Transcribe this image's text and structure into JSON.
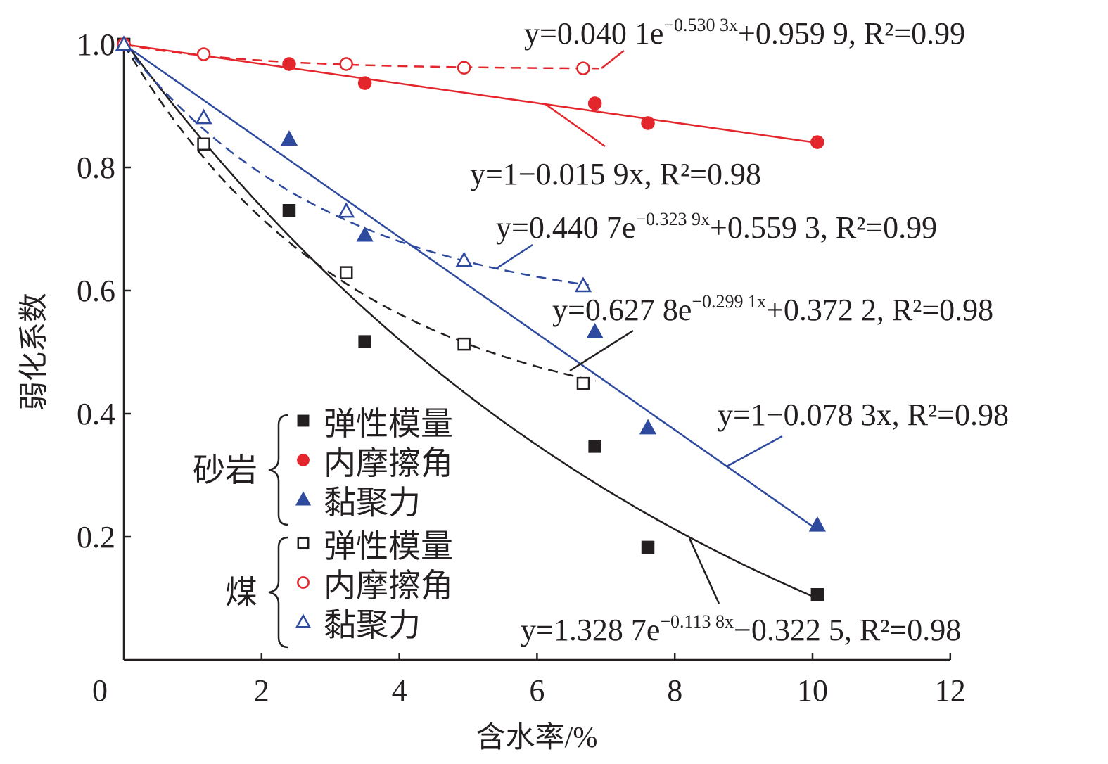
{
  "chart_data": {
    "type": "scatter",
    "title": "",
    "xlabel": "含水率/%",
    "ylabel": "弱化系数",
    "xlim": [
      0,
      12
    ],
    "ylim": [
      0,
      1.0
    ],
    "xticks": [
      "0",
      "2",
      "4",
      "6",
      "8",
      "10",
      "12"
    ],
    "yticks": [
      "0.2",
      "0.4",
      "0.6",
      "0.8",
      "1.0"
    ],
    "grid": false,
    "legend": {
      "placement": "bottom-left",
      "groups": [
        {
          "label": "砂岩",
          "items": [
            "弹性模量",
            "内摩擦角",
            "黏聚力"
          ]
        },
        {
          "label": "煤",
          "items": [
            "弹性模量",
            "内摩擦角",
            "黏聚力"
          ]
        }
      ]
    },
    "colors": {
      "black": "#231f20",
      "red": "#e3262b",
      "blue": "#2e4a9e"
    },
    "series": [
      {
        "name": "砂岩 弹性模量",
        "marker": "square-filled",
        "color": "#231f20",
        "x": [
          0,
          2.4,
          3.5,
          6.84,
          7.61,
          10.07
        ],
        "y": [
          1.0,
          0.73,
          0.517,
          0.347,
          0.183,
          0.106
        ],
        "fit": {
          "kind": "exp",
          "a": 1.3287,
          "b": -0.1138,
          "c": -0.3225,
          "dash": false,
          "range": [
            0,
            10.07
          ]
        }
      },
      {
        "name": "砂岩 内摩擦角",
        "marker": "circle-filled",
        "color": "#e3262b",
        "x": [
          0,
          2.4,
          3.5,
          6.84,
          7.61,
          10.07
        ],
        "y": [
          1.0,
          0.968,
          0.937,
          0.904,
          0.872,
          0.841
        ],
        "fit": {
          "kind": "linear",
          "slope": -0.0159,
          "intercept": 1,
          "dash": false,
          "range": [
            0,
            10.07
          ]
        }
      },
      {
        "name": "砂岩 黏聚力",
        "marker": "triangle-filled",
        "color": "#2e4a9e",
        "x": [
          0,
          2.4,
          3.5,
          6.84,
          7.61,
          10.07
        ],
        "y": [
          1.0,
          0.846,
          0.69,
          0.533,
          0.377,
          0.219
        ],
        "fit": {
          "kind": "linear",
          "slope": -0.0783,
          "intercept": 1,
          "dash": false,
          "range": [
            0,
            10.07
          ]
        }
      },
      {
        "name": "煤 弹性模量",
        "marker": "square-open",
        "color": "#231f20",
        "x": [
          0,
          1.16,
          3.23,
          4.94,
          6.67
        ],
        "y": [
          1.0,
          0.838,
          0.629,
          0.513,
          0.449
        ],
        "fit": {
          "kind": "exp",
          "a": 0.6278,
          "b": -0.2991,
          "c": 0.3722,
          "dash": true,
          "range": [
            0,
            6.85
          ]
        }
      },
      {
        "name": "煤 内摩擦角",
        "marker": "circle-open",
        "color": "#e3262b",
        "x": [
          0,
          1.16,
          3.23,
          4.94,
          6.67
        ],
        "y": [
          1.0,
          0.984,
          0.968,
          0.962,
          0.961
        ],
        "fit": {
          "kind": "exp",
          "a": 0.0401,
          "b": -0.5303,
          "c": 0.9599,
          "dash": true,
          "range": [
            0,
            6.9
          ]
        }
      },
      {
        "name": "煤 黏聚力",
        "marker": "triangle-open",
        "color": "#2e4a9e",
        "x": [
          0,
          1.16,
          3.23,
          4.94,
          6.67
        ],
        "y": [
          1.0,
          0.881,
          0.729,
          0.649,
          0.608
        ],
        "fit": {
          "kind": "exp",
          "a": 0.4407,
          "b": -0.3239,
          "c": 0.5593,
          "dash": true,
          "range": [
            0,
            6.75
          ]
        }
      }
    ],
    "annotations": [
      {
        "pre": "y=0.040 1e",
        "exp": "−0.530 3x",
        "post": "+0.959 9, R²=0.99",
        "color": "#e3262b"
      },
      {
        "pre": "y=1−0.015 9x, R²=0.98",
        "exp": "",
        "post": "",
        "color": "#e3262b"
      },
      {
        "pre": "y=0.440 7e",
        "exp": "−0.323 9x",
        "post": "+0.559 3, R²=0.99",
        "color": "#2e4a9e"
      },
      {
        "pre": "y=0.627 8e",
        "exp": "−0.299 1x",
        "post": "+0.372 2, R²=0.98",
        "color": "#231f20"
      },
      {
        "pre": "y=1−0.078 3x, R²=0.98",
        "exp": "",
        "post": "",
        "color": "#2e4a9e"
      },
      {
        "pre": "y=1.328 7e",
        "exp": "−0.113 8x",
        "post": "−0.322 5, R²=0.98",
        "color": "#231f20"
      }
    ]
  }
}
